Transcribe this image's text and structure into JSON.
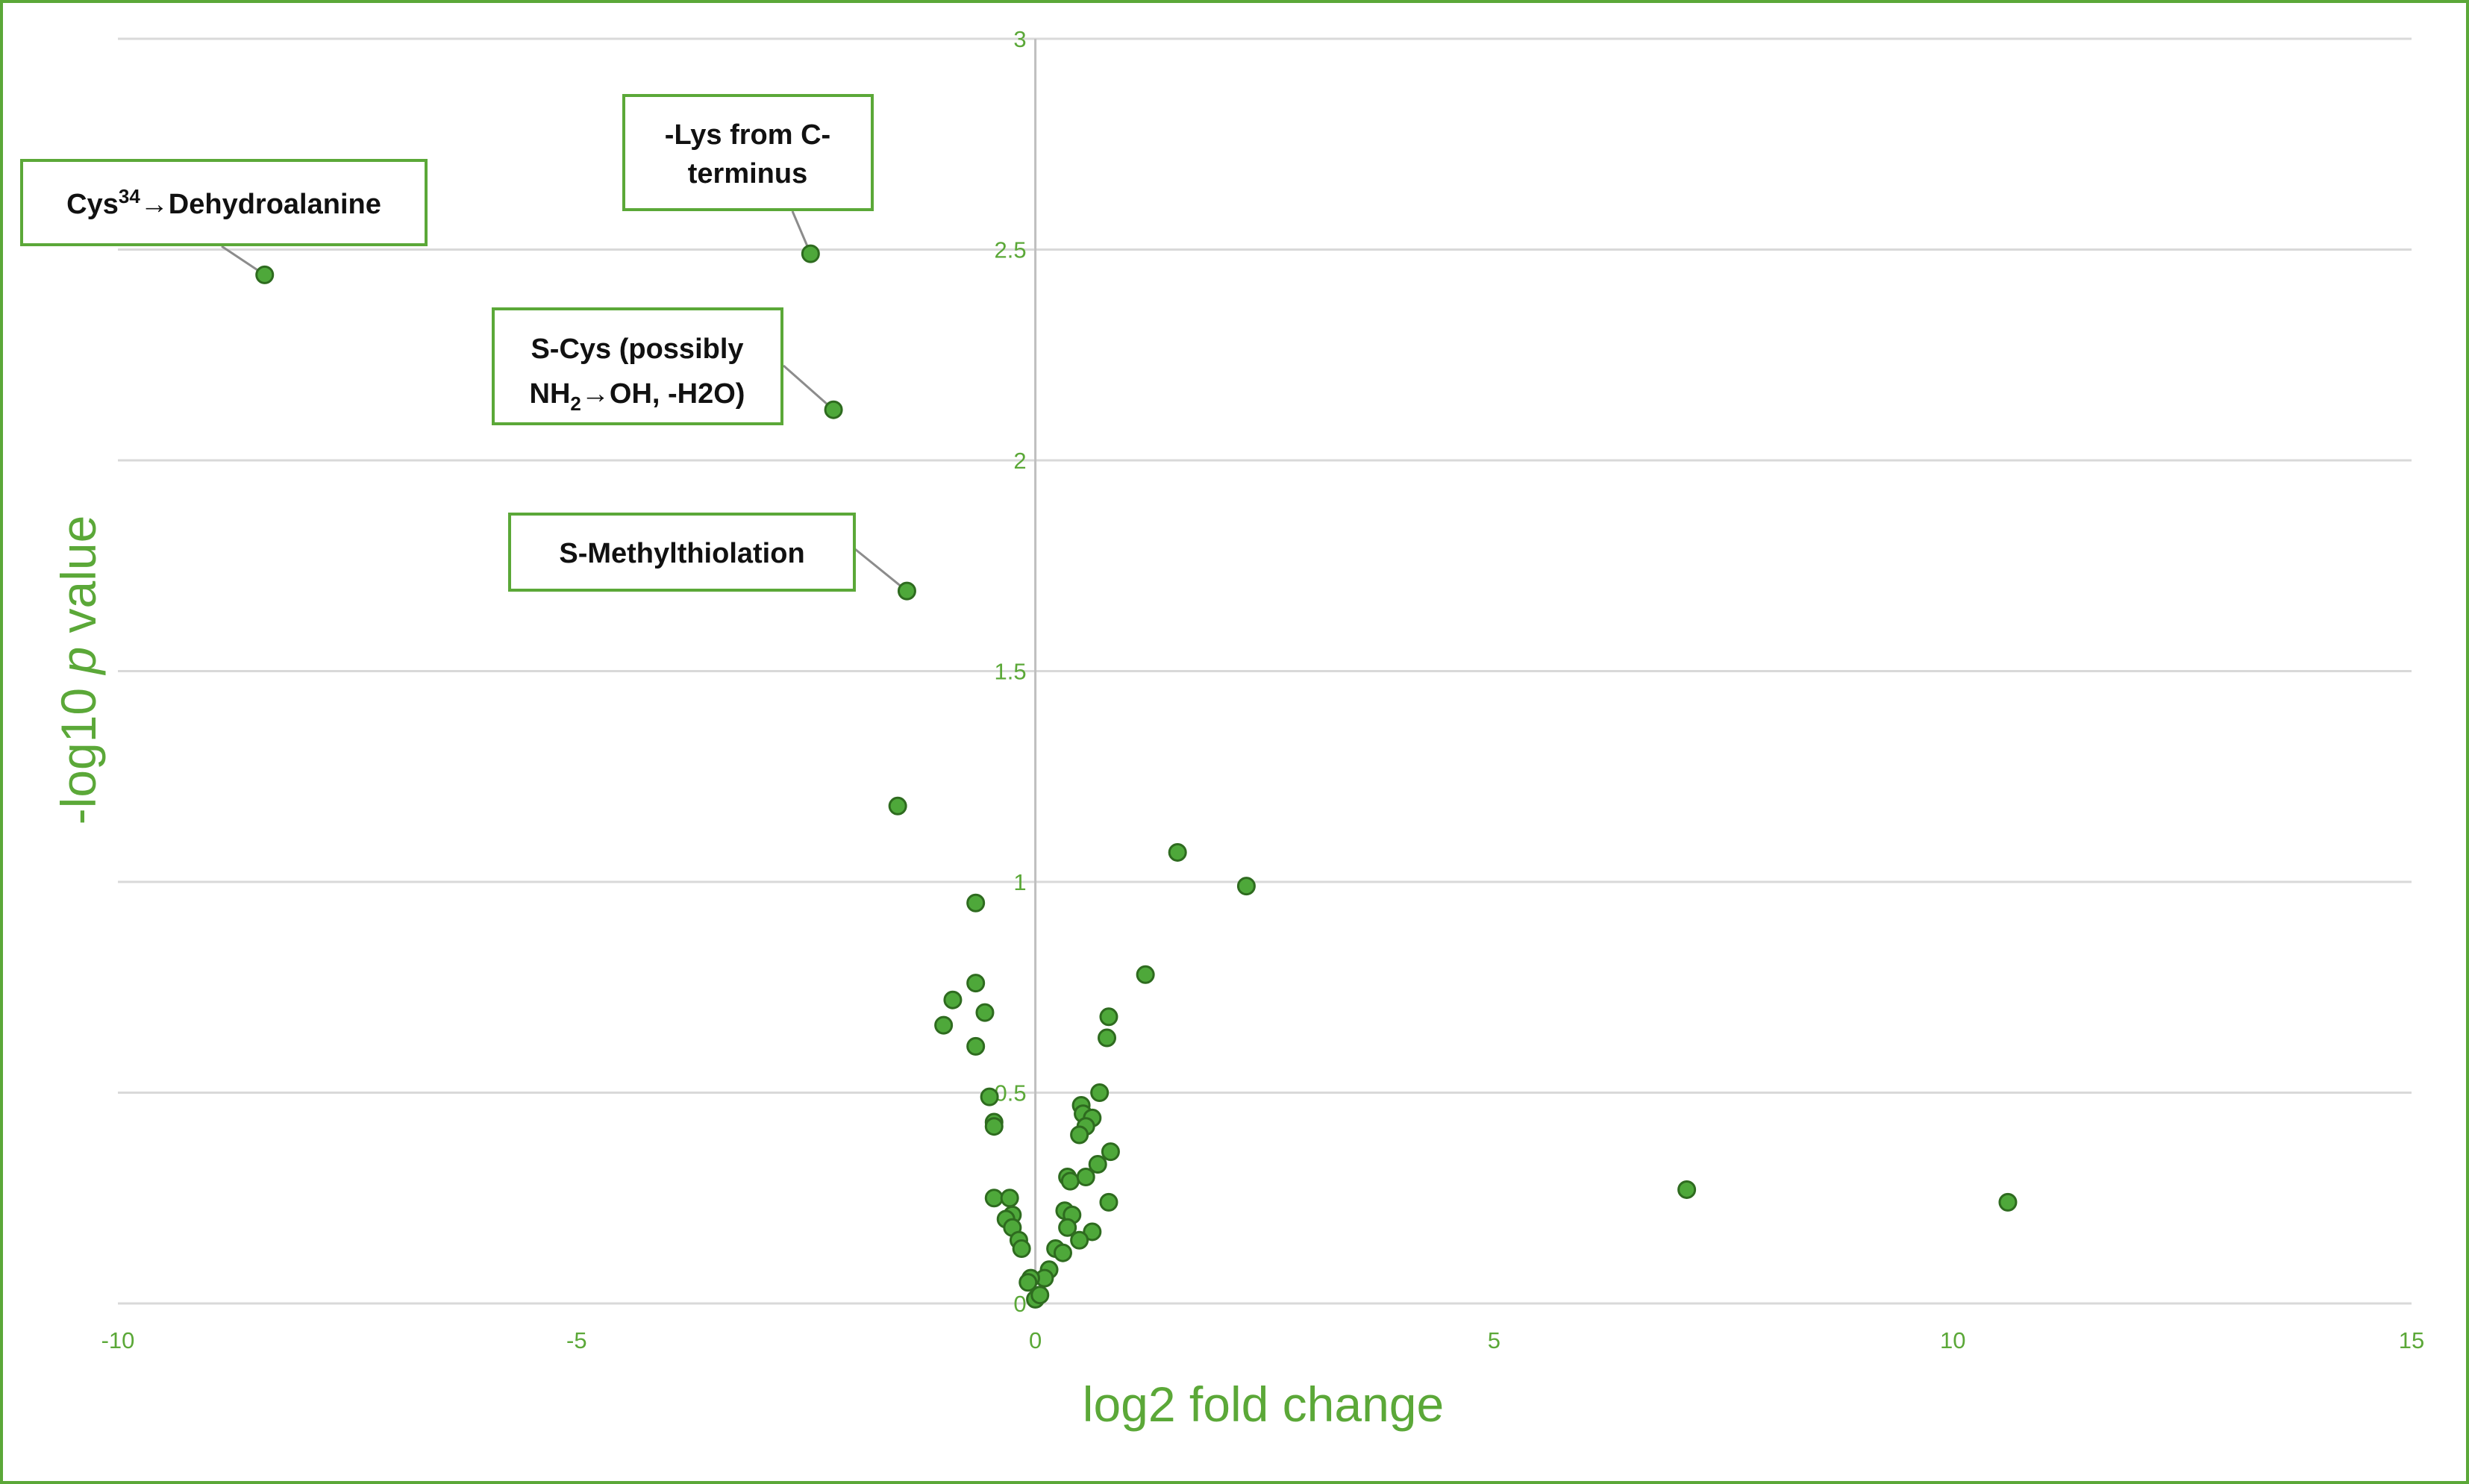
{
  "chart_data": {
    "type": "scatter",
    "title": "",
    "xlabel": "log2 fold change",
    "ylabel_parts": [
      "-log10 ",
      "p",
      " value"
    ],
    "xlim": [
      -10,
      15
    ],
    "ylim": [
      0,
      3
    ],
    "x_ticks": [
      "-10",
      "-5",
      "0",
      "5",
      "10",
      "15"
    ],
    "y_ticks": [
      "0",
      "0.5",
      "1",
      "1.5",
      "2",
      "2.5",
      "3"
    ],
    "grid": "horizontal",
    "colors": {
      "accent": "#5ba838",
      "point_fill": "#4ea83a",
      "point_stroke": "#2e6b1f",
      "grid": "#d9d9d9",
      "frame": "#5ba838"
    },
    "points": [
      {
        "x": -8.4,
        "y": 2.44
      },
      {
        "x": -2.45,
        "y": 2.49
      },
      {
        "x": -2.2,
        "y": 2.12
      },
      {
        "x": -1.4,
        "y": 1.69
      },
      {
        "x": -1.5,
        "y": 1.18
      },
      {
        "x": 1.55,
        "y": 1.07
      },
      {
        "x": 2.3,
        "y": 0.99
      },
      {
        "x": -0.65,
        "y": 0.95
      },
      {
        "x": 1.2,
        "y": 0.78
      },
      {
        "x": -0.65,
        "y": 0.76
      },
      {
        "x": -0.9,
        "y": 0.72
      },
      {
        "x": -0.55,
        "y": 0.69
      },
      {
        "x": 0.8,
        "y": 0.68
      },
      {
        "x": -1.0,
        "y": 0.66
      },
      {
        "x": 0.78,
        "y": 0.63
      },
      {
        "x": -0.65,
        "y": 0.61
      },
      {
        "x": -0.5,
        "y": 0.49
      },
      {
        "x": 0.7,
        "y": 0.5
      },
      {
        "x": 0.5,
        "y": 0.47
      },
      {
        "x": 0.52,
        "y": 0.45
      },
      {
        "x": 0.62,
        "y": 0.44
      },
      {
        "x": 0.55,
        "y": 0.42
      },
      {
        "x": -0.45,
        "y": 0.43
      },
      {
        "x": -0.45,
        "y": 0.42
      },
      {
        "x": 0.48,
        "y": 0.4
      },
      {
        "x": 0.82,
        "y": 0.36
      },
      {
        "x": 0.68,
        "y": 0.33
      },
      {
        "x": 0.35,
        "y": 0.3
      },
      {
        "x": 0.38,
        "y": 0.29
      },
      {
        "x": 0.55,
        "y": 0.3
      },
      {
        "x": -0.45,
        "y": 0.25
      },
      {
        "x": -0.28,
        "y": 0.25
      },
      {
        "x": 0.8,
        "y": 0.24
      },
      {
        "x": -0.25,
        "y": 0.21
      },
      {
        "x": 0.32,
        "y": 0.22
      },
      {
        "x": 0.4,
        "y": 0.21
      },
      {
        "x": -0.32,
        "y": 0.2
      },
      {
        "x": -0.25,
        "y": 0.18
      },
      {
        "x": 0.35,
        "y": 0.18
      },
      {
        "x": 0.62,
        "y": 0.17
      },
      {
        "x": -0.18,
        "y": 0.15
      },
      {
        "x": -0.15,
        "y": 0.13
      },
      {
        "x": 0.48,
        "y": 0.15
      },
      {
        "x": 0.22,
        "y": 0.13
      },
      {
        "x": 0.3,
        "y": 0.12
      },
      {
        "x": 0.15,
        "y": 0.08
      },
      {
        "x": 0.1,
        "y": 0.06
      },
      {
        "x": -0.05,
        "y": 0.06
      },
      {
        "x": -0.08,
        "y": 0.05
      },
      {
        "x": 0.0,
        "y": 0.01
      },
      {
        "x": 0.05,
        "y": 0.02
      },
      {
        "x": 7.1,
        "y": 0.27
      },
      {
        "x": 10.6,
        "y": 0.24
      }
    ],
    "annotations": [
      {
        "label": "Cys",
        "sup": "34",
        "label2": "→Dehydroalanine",
        "point": 0
      },
      {
        "line1": "-Lys from C-",
        "line2": "terminus",
        "point": 1
      },
      {
        "line1": "S-Cys (possibly",
        "line2_pre": "NH",
        "line2_sub": "2",
        "line2_post": "→OH, -H2O)",
        "point": 2
      },
      {
        "label": "S-Methylthiolation",
        "point": 3
      }
    ]
  }
}
